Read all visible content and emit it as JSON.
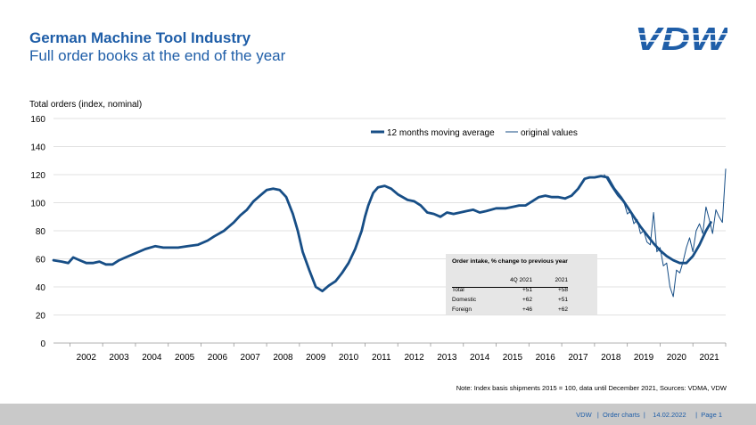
{
  "header": {
    "title": "German Machine Tool Industry",
    "subtitle": "Full order books at the end of the year",
    "logo_text": "VDW"
  },
  "note": "Note: Index basis shipments 2015 = 100, data until December 2021, Sources: VDMA, VDW",
  "footer": {
    "text": "VDW   |  Order charts  |    14.02.2022     |  Page 1"
  },
  "colors": {
    "brand": "#1f5ea8",
    "line": "#174e86",
    "footer_bg": "#c9c9c9",
    "inset_bg": "#e6e6e6"
  },
  "inset_table": {
    "title": "Order intake, % change to previous year",
    "headers": [
      "",
      "4Q 2021",
      "2021"
    ],
    "rows": [
      [
        "Total",
        "+51",
        "+58"
      ],
      [
        "Domestic",
        "+62",
        "+51"
      ],
      [
        "Foreign",
        "+46",
        "+62"
      ]
    ]
  },
  "chart_data": {
    "type": "line",
    "ylabel": "Total orders (index, nominal)",
    "ylim": [
      0,
      160
    ],
    "yticks": [
      0,
      20,
      40,
      60,
      80,
      100,
      120,
      140,
      160
    ],
    "xlim": [
      2001.5,
      2022.0
    ],
    "xtick_labels": [
      "2002",
      "2003",
      "2004",
      "2005",
      "2006",
      "2007",
      "2008",
      "2009",
      "2010",
      "2011",
      "2012",
      "2013",
      "2014",
      "2015",
      "2016",
      "2017",
      "2018",
      "2019",
      "2020",
      "2021"
    ],
    "grid": true,
    "legend": "top-center",
    "series": [
      {
        "name": "12 months moving average",
        "x": [
          2001.5,
          2001.75,
          2001.95,
          2002.1,
          2002.3,
          2002.5,
          2002.7,
          2002.9,
          2003.1,
          2003.3,
          2003.5,
          2003.7,
          2004.0,
          2004.3,
          2004.6,
          2004.85,
          2005.0,
          2005.3,
          2005.6,
          2005.9,
          2006.2,
          2006.4,
          2006.7,
          2007.0,
          2007.2,
          2007.4,
          2007.6,
          2007.8,
          2008.0,
          2008.2,
          2008.4,
          2008.6,
          2008.8,
          2008.95,
          2009.1,
          2009.3,
          2009.5,
          2009.7,
          2009.9,
          2010.1,
          2010.3,
          2010.5,
          2010.7,
          2010.9,
          2011.0,
          2011.1,
          2011.25,
          2011.4,
          2011.6,
          2011.8,
          2012.0,
          2012.3,
          2012.5,
          2012.7,
          2012.9,
          2013.1,
          2013.3,
          2013.5,
          2013.7,
          2013.9,
          2014.1,
          2014.3,
          2014.5,
          2014.7,
          2015.0,
          2015.3,
          2015.5,
          2015.7,
          2015.9,
          2016.1,
          2016.3,
          2016.5,
          2016.7,
          2016.9,
          2017.1,
          2017.3,
          2017.5,
          2017.7,
          2017.85,
          2018.0,
          2018.2,
          2018.4,
          2018.6,
          2018.8,
          2019.0,
          2019.2,
          2019.4,
          2019.6,
          2019.8,
          2020.0,
          2020.2,
          2020.4,
          2020.6,
          2020.8,
          2021.0,
          2021.2,
          2021.4,
          2021.55
        ],
        "y": [
          59,
          58,
          57,
          61,
          59,
          57,
          57,
          58,
          56,
          56,
          59,
          61,
          64,
          67,
          69,
          68,
          68,
          68,
          69,
          70,
          73,
          76,
          80,
          86,
          91,
          95,
          101,
          105,
          109,
          110,
          109,
          104,
          92,
          80,
          65,
          52,
          40,
          37,
          41,
          44,
          50,
          57,
          67,
          80,
          90,
          98,
          107,
          111,
          112,
          110,
          106,
          102,
          101,
          98,
          93,
          92,
          90,
          93,
          92,
          93,
          94,
          95,
          93,
          94,
          96,
          96,
          97,
          98,
          98,
          101,
          104,
          105,
          104,
          104,
          103,
          105,
          110,
          117,
          118,
          118,
          119,
          118,
          110,
          104,
          97,
          90,
          83,
          77,
          71,
          66,
          62,
          59,
          57,
          57,
          62,
          70,
          80,
          86
        ]
      },
      {
        "name": "original values",
        "x": [
          2018.3,
          2018.5,
          2018.7,
          2018.9,
          2019.0,
          2019.1,
          2019.2,
          2019.3,
          2019.4,
          2019.5,
          2019.6,
          2019.7,
          2019.8,
          2019.9,
          2020.0,
          2020.1,
          2020.2,
          2020.3,
          2020.4,
          2020.5,
          2020.6,
          2020.7,
          2020.8,
          2020.9,
          2021.0,
          2021.1,
          2021.2,
          2021.3,
          2021.4,
          2021.5,
          2021.6,
          2021.7,
          2021.8,
          2021.9,
          2022.0
        ],
        "y": [
          120,
          112,
          105,
          100,
          92,
          94,
          85,
          88,
          78,
          80,
          72,
          70,
          93,
          65,
          68,
          55,
          57,
          40,
          33,
          52,
          50,
          58,
          68,
          75,
          65,
          80,
          85,
          78,
          97,
          88,
          78,
          95,
          90,
          86,
          124
        ]
      }
    ]
  }
}
